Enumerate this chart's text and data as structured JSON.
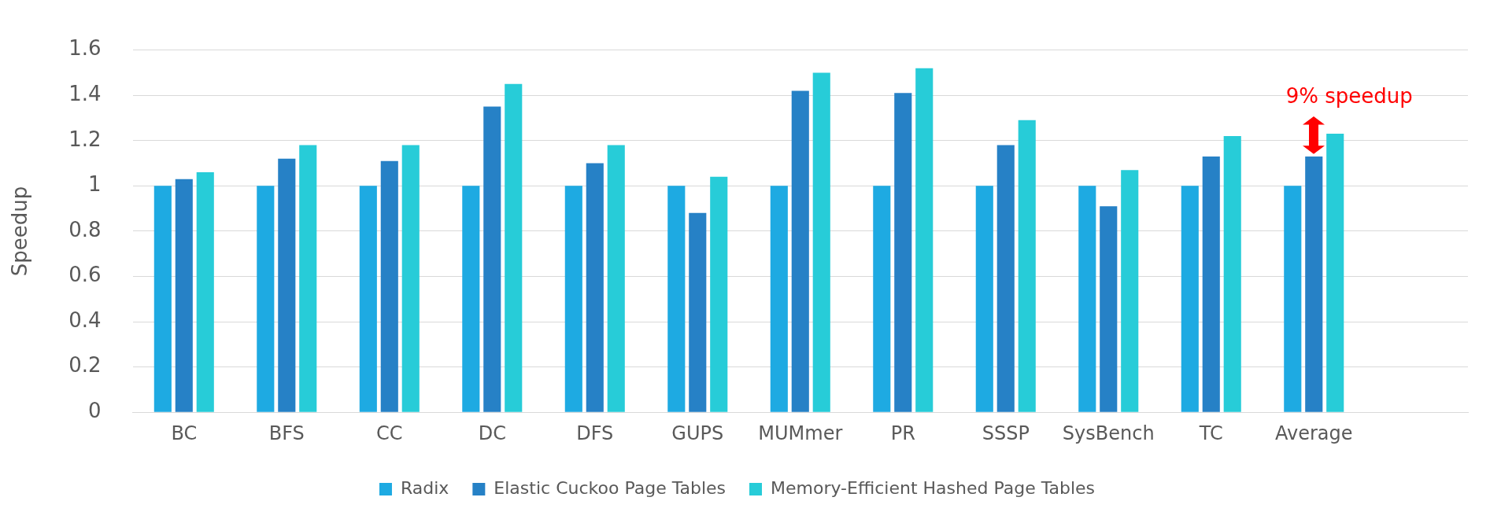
{
  "chart_data": {
    "type": "bar",
    "ylabel": "Speedup",
    "categories": [
      "BC",
      "BFS",
      "CC",
      "DC",
      "DFS",
      "GUPS",
      "MUMmer",
      "PR",
      "SSSP",
      "SysBench",
      "TC",
      "Average",
      null
    ],
    "series": [
      {
        "name": "Radix",
        "color": "#1eaae2",
        "values": [
          1,
          1,
          1,
          1,
          1,
          1,
          1,
          1,
          1,
          1,
          1,
          1,
          null
        ]
      },
      {
        "name": "Elastic Cuckoo Page Tables",
        "color": "#2681c6",
        "values": [
          1.03,
          1.12,
          1.11,
          1.35,
          1.1,
          0.88,
          1.42,
          1.41,
          1.18,
          0.91,
          1.13,
          1.13,
          null
        ]
      },
      {
        "name": "Memory-Efficient Hashed Page Tables",
        "color": "#27ccd8",
        "values": [
          1.06,
          1.18,
          1.18,
          1.45,
          1.18,
          1.04,
          1.5,
          1.52,
          1.29,
          1.07,
          1.22,
          1.23,
          null
        ]
      }
    ],
    "ylim": [
      0,
      1.6
    ],
    "yticks": [
      0,
      0.2,
      0.4,
      0.6,
      0.8,
      1,
      1.2,
      1.4,
      1.6
    ],
    "grid": "y",
    "legend": "bottom",
    "annotations": [
      "9% speedup"
    ]
  }
}
